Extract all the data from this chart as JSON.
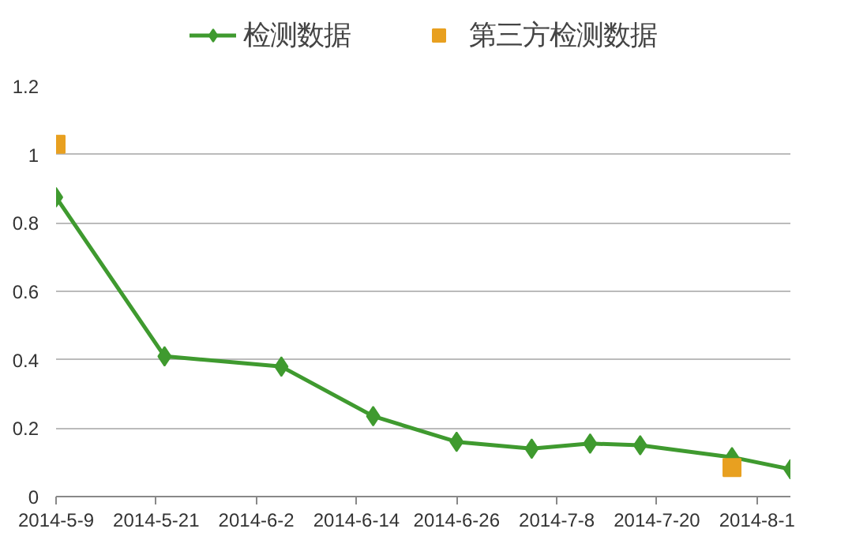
{
  "chart_data": {
    "type": "line",
    "legend": "top",
    "grid": "y",
    "marker": "diamond",
    "line_style": "solid",
    "xlim": [
      "2014-05-09",
      "2014-08-05"
    ],
    "xticks": [
      {
        "value": "2014-05-09",
        "label": "2014-5-9"
      },
      {
        "value": "2014-05-21",
        "label": "2014-5-21"
      },
      {
        "value": "2014-06-02",
        "label": "2014-6-2"
      },
      {
        "value": "2014-06-14",
        "label": "2014-6-14"
      },
      {
        "value": "2014-06-26",
        "label": "2014-6-26"
      },
      {
        "value": "2014-07-08",
        "label": "2014-7-8"
      },
      {
        "value": "2014-07-20",
        "label": "2014-7-20"
      },
      {
        "value": "2014-08-01",
        "label": "2014-8-1"
      }
    ],
    "ylim": [
      0,
      1.2
    ],
    "yticks": [
      0,
      0.2,
      0.4,
      0.6,
      0.8,
      1,
      1.2
    ],
    "series": [
      {
        "name": "检测数据",
        "color": "#3f9a2f",
        "x": [
          "2014-05-09",
          "2014-05-22",
          "2014-06-05",
          "2014-06-16",
          "2014-06-26",
          "2014-07-05",
          "2014-07-12",
          "2014-07-18",
          "2014-07-29",
          "2014-08-05"
        ],
        "values": [
          0.875,
          0.41,
          0.38,
          0.235,
          0.16,
          0.14,
          0.155,
          0.15,
          0.115,
          0.08
        ]
      },
      {
        "name": "第三方检测数据",
        "type": "scatter",
        "marker": "square",
        "color": "#e8a020",
        "x": [
          "2014-05-09",
          "2014-07-29"
        ],
        "values": [
          1.03,
          0.085
        ]
      }
    ]
  }
}
